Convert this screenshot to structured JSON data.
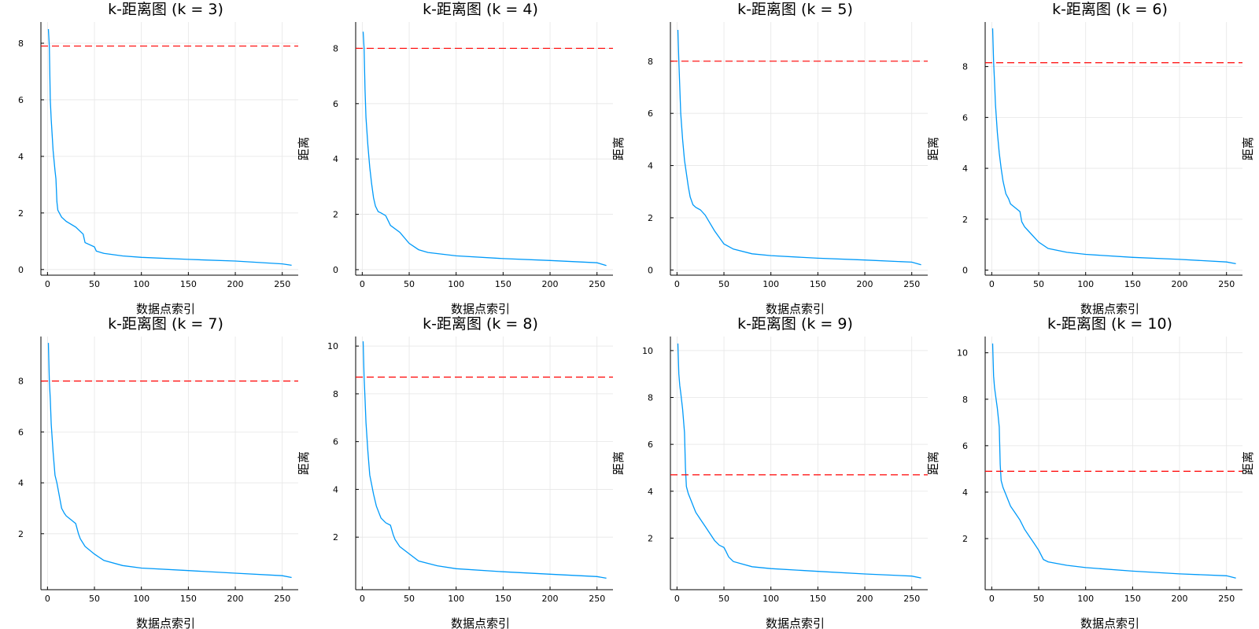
{
  "colors": {
    "curve": "#009af9",
    "threshold": "#ff0000",
    "grid": "#e6e6e6",
    "axis": "#000000"
  },
  "chart_data": [
    {
      "type": "line",
      "title": "k-距离图 (k = 3)",
      "xlabel": "数据点索引",
      "ylabel": "距离",
      "xlim": [
        -7,
        267
      ],
      "ylim": [
        -0.2,
        8.75
      ],
      "xticks": [
        0,
        50,
        100,
        150,
        200,
        250
      ],
      "yticks": [
        0,
        2,
        4,
        6,
        8
      ],
      "threshold": 7.9,
      "series": [
        {
          "x": [
            1,
            2,
            3,
            4,
            6,
            8,
            9,
            10,
            11,
            15,
            20,
            30,
            38,
            40,
            50,
            52,
            60,
            80,
            100,
            150,
            200,
            250,
            260
          ],
          "y": [
            8.5,
            7.9,
            6.0,
            5.3,
            4.2,
            3.5,
            3.2,
            2.4,
            2.1,
            1.85,
            1.7,
            1.5,
            1.25,
            0.95,
            0.8,
            0.65,
            0.57,
            0.48,
            0.43,
            0.36,
            0.3,
            0.2,
            0.15
          ]
        }
      ],
      "legend": "none",
      "grid": true
    },
    {
      "type": "line",
      "title": "k-距离图 (k = 4)",
      "xlabel": "数据点索引",
      "ylabel": "距离",
      "xlim": [
        -7,
        267
      ],
      "ylim": [
        -0.2,
        8.95
      ],
      "xticks": [
        0,
        50,
        100,
        150,
        200,
        250
      ],
      "yticks": [
        0,
        2,
        4,
        6,
        8
      ],
      "threshold": 8.0,
      "series": [
        {
          "x": [
            1,
            2,
            3,
            4,
            6,
            8,
            10,
            12,
            14,
            17,
            20,
            25,
            30,
            40,
            50,
            60,
            70,
            100,
            150,
            200,
            250,
            260
          ],
          "y": [
            8.6,
            8.0,
            6.5,
            5.5,
            4.5,
            3.7,
            3.1,
            2.6,
            2.3,
            2.1,
            2.05,
            1.95,
            1.6,
            1.35,
            0.95,
            0.72,
            0.62,
            0.5,
            0.4,
            0.33,
            0.25,
            0.15
          ]
        }
      ],
      "legend": "none",
      "grid": true
    },
    {
      "type": "line",
      "title": "k-距离图 (k = 5)",
      "xlabel": "数据点索引",
      "ylabel": "距离",
      "xlim": [
        -7,
        267
      ],
      "ylim": [
        -0.2,
        9.5
      ],
      "xticks": [
        0,
        50,
        100,
        150,
        200,
        250
      ],
      "yticks": [
        0,
        2,
        4,
        6,
        8
      ],
      "threshold": 8.0,
      "series": [
        {
          "x": [
            1,
            2,
            3,
            4,
            6,
            8,
            10,
            12,
            14,
            17,
            20,
            25,
            30,
            35,
            40,
            50,
            60,
            80,
            100,
            150,
            200,
            250,
            260
          ],
          "y": [
            9.2,
            8.0,
            7.0,
            6.0,
            5.0,
            4.2,
            3.7,
            3.2,
            2.8,
            2.5,
            2.4,
            2.3,
            2.1,
            1.8,
            1.5,
            1.0,
            0.8,
            0.62,
            0.55,
            0.45,
            0.38,
            0.3,
            0.2
          ]
        }
      ],
      "legend": "none",
      "grid": true
    },
    {
      "type": "line",
      "title": "k-距离图 (k = 6)",
      "xlabel": "数据点索引",
      "ylabel": "距离",
      "xlim": [
        -7,
        267
      ],
      "ylim": [
        -0.2,
        9.75
      ],
      "xticks": [
        0,
        50,
        100,
        150,
        200,
        250
      ],
      "yticks": [
        0,
        2,
        4,
        6,
        8
      ],
      "threshold": 8.15,
      "series": [
        {
          "x": [
            1,
            2,
            3,
            4,
            6,
            8,
            10,
            12,
            15,
            18,
            20,
            25,
            30,
            32,
            35,
            40,
            50,
            60,
            80,
            100,
            150,
            200,
            250,
            260
          ],
          "y": [
            9.5,
            8.2,
            7.4,
            6.5,
            5.4,
            4.6,
            4.0,
            3.5,
            3.0,
            2.8,
            2.6,
            2.45,
            2.3,
            1.9,
            1.7,
            1.5,
            1.1,
            0.85,
            0.7,
            0.62,
            0.5,
            0.42,
            0.32,
            0.25
          ]
        }
      ],
      "legend": "none",
      "grid": true
    },
    {
      "type": "line",
      "title": "k-距离图 (k = 7)",
      "xlabel": "数据点索引",
      "ylabel": "距离",
      "xlim": [
        -7,
        267
      ],
      "ylim": [
        -0.2,
        9.75
      ],
      "xticks": [
        0,
        50,
        100,
        150,
        200,
        250
      ],
      "yticks": [
        2,
        4,
        6,
        8
      ],
      "threshold": 8.0,
      "series": [
        {
          "x": [
            1,
            2,
            3,
            4,
            6,
            8,
            10,
            12,
            15,
            18,
            20,
            25,
            30,
            33,
            35,
            40,
            50,
            60,
            80,
            100,
            150,
            200,
            250,
            260
          ],
          "y": [
            9.5,
            8.0,
            7.3,
            6.3,
            5.2,
            4.3,
            4.0,
            3.6,
            3.0,
            2.8,
            2.7,
            2.55,
            2.4,
            2.0,
            1.8,
            1.5,
            1.2,
            0.95,
            0.75,
            0.65,
            0.55,
            0.45,
            0.35,
            0.28
          ]
        }
      ],
      "legend": "none",
      "grid": true
    },
    {
      "type": "line",
      "title": "k-距离图 (k = 8)",
      "xlabel": "数据点索引",
      "ylabel": "距离",
      "xlim": [
        -7,
        267
      ],
      "ylim": [
        -0.2,
        10.4
      ],
      "xticks": [
        0,
        50,
        100,
        150,
        200,
        250
      ],
      "yticks": [
        2,
        4,
        6,
        8,
        10
      ],
      "threshold": 8.7,
      "series": [
        {
          "x": [
            1,
            2,
            3,
            4,
            6,
            8,
            10,
            12,
            15,
            18,
            20,
            25,
            30,
            33,
            35,
            40,
            50,
            60,
            80,
            100,
            150,
            200,
            250,
            260
          ],
          "y": [
            10.2,
            8.7,
            7.8,
            6.8,
            5.6,
            4.6,
            4.2,
            3.8,
            3.3,
            3.0,
            2.8,
            2.6,
            2.5,
            2.1,
            1.9,
            1.6,
            1.3,
            1.0,
            0.8,
            0.68,
            0.55,
            0.45,
            0.35,
            0.28
          ]
        }
      ],
      "legend": "none",
      "grid": true
    },
    {
      "type": "line",
      "title": "k-距离图 (k = 9)",
      "xlabel": "数据点索引",
      "ylabel": "距离",
      "xlim": [
        -7,
        267
      ],
      "ylim": [
        -0.2,
        10.6
      ],
      "xticks": [
        0,
        50,
        100,
        150,
        200,
        250
      ],
      "yticks": [
        2,
        4,
        6,
        8,
        10
      ],
      "threshold": 4.7,
      "series": [
        {
          "x": [
            1,
            2,
            3,
            4,
            6,
            8,
            9,
            10,
            12,
            15,
            18,
            20,
            25,
            30,
            35,
            40,
            45,
            50,
            52,
            55,
            60,
            80,
            100,
            150,
            200,
            250,
            260
          ],
          "y": [
            10.3,
            9.0,
            8.5,
            8.2,
            7.5,
            6.5,
            5.0,
            4.2,
            3.9,
            3.6,
            3.3,
            3.1,
            2.8,
            2.5,
            2.2,
            1.9,
            1.7,
            1.6,
            1.45,
            1.2,
            1.0,
            0.78,
            0.7,
            0.58,
            0.47,
            0.38,
            0.3
          ]
        }
      ],
      "legend": "none",
      "grid": true
    },
    {
      "type": "line",
      "title": "k-距离图 (k = 10)",
      "xlabel": "数据点索引",
      "ylabel": "距离",
      "xlim": [
        -7,
        267
      ],
      "ylim": [
        -0.2,
        10.7
      ],
      "xticks": [
        0,
        50,
        100,
        150,
        200,
        250
      ],
      "yticks": [
        2,
        4,
        6,
        8,
        10
      ],
      "threshold": 4.9,
      "series": [
        {
          "x": [
            1,
            2,
            3,
            4,
            6,
            8,
            9,
            10,
            12,
            15,
            20,
            25,
            30,
            35,
            40,
            45,
            50,
            55,
            60,
            80,
            100,
            150,
            200,
            250,
            260
          ],
          "y": [
            10.4,
            9.0,
            8.5,
            8.2,
            7.6,
            6.8,
            5.2,
            4.5,
            4.2,
            3.9,
            3.4,
            3.1,
            2.8,
            2.4,
            2.1,
            1.8,
            1.5,
            1.1,
            1.0,
            0.85,
            0.75,
            0.6,
            0.48,
            0.4,
            0.3
          ]
        }
      ],
      "legend": "none",
      "grid": true
    }
  ]
}
